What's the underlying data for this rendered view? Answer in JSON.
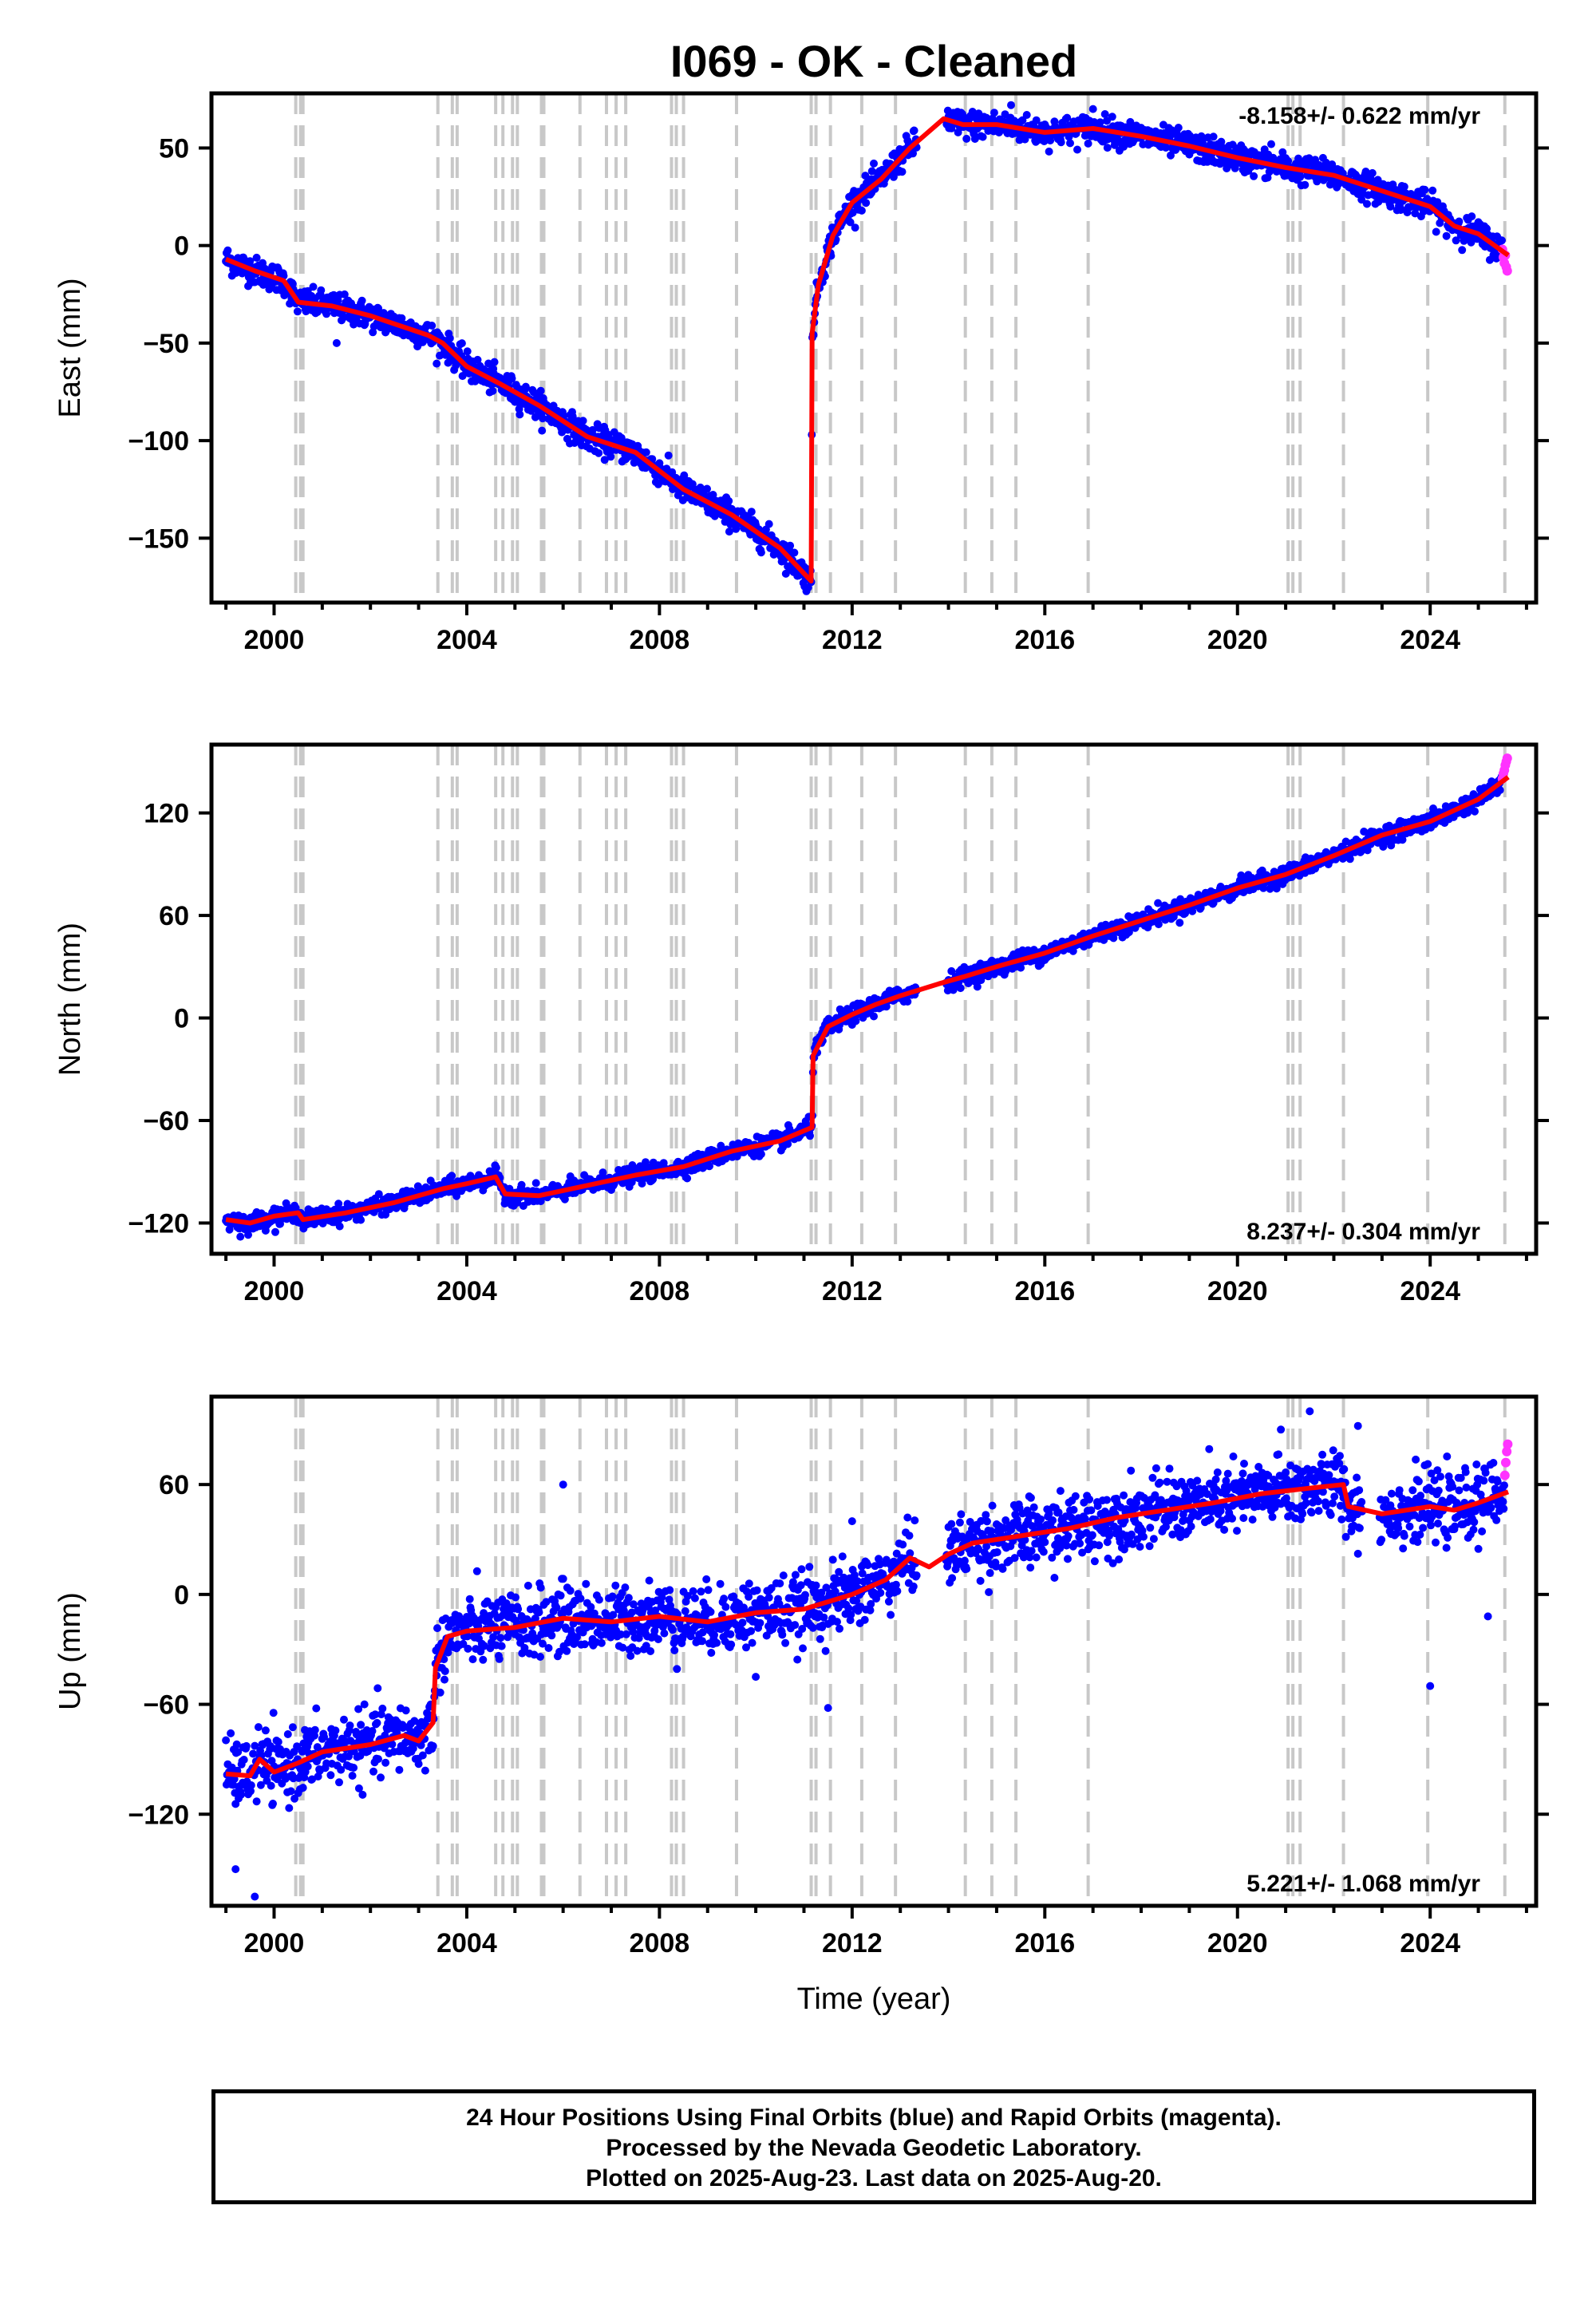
{
  "title": "I069  - OK - Cleaned",
  "xlabel": "Time (year)",
  "colors": {
    "final_orbits": "#0000ff",
    "rapid_orbits": "#ff33ff",
    "model": "#ff0000",
    "event_lines": "#c8c8c8",
    "frame": "#000000"
  },
  "footer": {
    "line1": "24 Hour Positions Using Final Orbits (blue) and Rapid Orbits (magenta).",
    "line2": "Processed by the Nevada Geodetic Laboratory.",
    "line3": "Plotted on 2025-Aug-23. Last data on 2025-Aug-20."
  },
  "chart_data": [
    {
      "type": "scatter",
      "ylabel": "East (mm)",
      "rate_label": "-8.158+/- 0.622 mm/yr",
      "rate_position": "top-right",
      "xlim": [
        1998.7,
        2026.2
      ],
      "ylim": [
        -183,
        78
      ],
      "x_ticks": [
        2000,
        2004,
        2008,
        2012,
        2016,
        2020,
        2024
      ],
      "y_ticks": [
        -150,
        -100,
        -50,
        0,
        50
      ],
      "y_tick_labels": [
        "−150",
        "−100",
        "−50",
        "0",
        "50"
      ],
      "noise_mm": 3.5,
      "model_x": [
        1999.0,
        1999.6,
        2000.2,
        2000.5,
        2001.2,
        2002.0,
        2003.2,
        2003.5,
        2004.0,
        2004.7,
        2005.5,
        2006.5,
        2007.5,
        2008.5,
        2009.5,
        2010.5,
        2011.15,
        2011.17,
        2011.3,
        2011.6,
        2012.0,
        2012.6,
        2013.2,
        2013.9,
        2014.3,
        2015.0,
        2016.0,
        2017.0,
        2018.0,
        2019.0,
        2020.0,
        2021.0,
        2022.0,
        2023.0,
        2024.0,
        2024.5,
        2025.0,
        2025.62
      ],
      "model_y": [
        -7,
        -13,
        -18,
        -29,
        -31,
        -36,
        -46,
        -50,
        -62,
        -71,
        -82,
        -98,
        -106,
        -125,
        -138,
        -155,
        -172,
        -45,
        -20,
        5,
        22,
        34,
        50,
        65,
        62,
        62,
        58,
        60,
        56,
        51,
        45,
        40,
        36,
        28,
        20,
        10,
        6,
        -5
      ],
      "rapid_x": [
        2025.5,
        2025.52,
        2025.54,
        2025.56,
        2025.58,
        2025.6
      ],
      "rapid_y": [
        -2,
        -6,
        -9,
        -5,
        -11,
        -13
      ],
      "outliers_x": [
        2001.3,
        2014.2,
        2015.3,
        2017.0,
        2020.7
      ],
      "outliers_y": [
        -50,
        58,
        72,
        70,
        52
      ]
    },
    {
      "type": "scatter",
      "ylabel": "North (mm)",
      "rate_label": "8.237+/- 0.304 mm/yr",
      "rate_position": "bottom-right",
      "xlim": [
        1998.7,
        2026.2
      ],
      "ylim": [
        -138,
        160
      ],
      "x_ticks": [
        2000,
        2004,
        2008,
        2012,
        2016,
        2020,
        2024
      ],
      "y_ticks": [
        -120,
        -60,
        0,
        60,
        120
      ],
      "y_tick_labels": [
        "−120",
        "−60",
        "0",
        "60",
        "120"
      ],
      "noise_mm": 2.5,
      "model_x": [
        1999.0,
        1999.5,
        2000.0,
        2000.5,
        2000.6,
        2001.5,
        2002.5,
        2003.5,
        2004.0,
        2004.6,
        2004.8,
        2005.5,
        2006.5,
        2007.5,
        2008.5,
        2009.5,
        2010.5,
        2011.17,
        2011.19,
        2011.5,
        2012.0,
        2012.5,
        2013.0,
        2013.8,
        2014.3,
        2015.0,
        2016.0,
        2017.0,
        2018.0,
        2019.0,
        2020.0,
        2021.0,
        2022.0,
        2023.0,
        2024.0,
        2025.0,
        2025.62
      ],
      "model_y": [
        -118,
        -120,
        -116,
        -114,
        -118,
        -114,
        -108,
        -100,
        -97,
        -93,
        -103,
        -104,
        -98,
        -92,
        -87,
        -78,
        -72,
        -64,
        -22,
        -5,
        2,
        8,
        13,
        20,
        24,
        30,
        38,
        48,
        57,
        66,
        76,
        84,
        95,
        107,
        115,
        128,
        141
      ],
      "rapid_x": [
        2025.5,
        2025.52,
        2025.54,
        2025.56,
        2025.58,
        2025.6
      ],
      "rapid_y": [
        140,
        143,
        145,
        148,
        150,
        152
      ],
      "outliers_x": [
        1999.3,
        2004.6
      ],
      "outliers_y": [
        -128,
        -88
      ]
    },
    {
      "type": "scatter",
      "ylabel": "Up (mm)",
      "rate_label": "5.221+/- 1.068 mm/yr",
      "rate_position": "bottom-right",
      "xlim": [
        1998.7,
        2026.2
      ],
      "ylim": [
        -170,
        108
      ],
      "x_ticks": [
        2000,
        2004,
        2008,
        2012,
        2016,
        2020,
        2024
      ],
      "y_ticks": [
        -120,
        -60,
        0,
        60
      ],
      "y_tick_labels": [
        "−120",
        "−60",
        "0",
        "60"
      ],
      "noise_mm": 9,
      "model_x": [
        1999.0,
        1999.5,
        1999.7,
        2000.0,
        2000.5,
        2001.0,
        2002.0,
        2002.7,
        2003.0,
        2003.3,
        2003.35,
        2003.6,
        2004.0,
        2005.0,
        2006.0,
        2007.0,
        2008.0,
        2009.0,
        2010.0,
        2011.0,
        2012.0,
        2012.7,
        2013.2,
        2013.6,
        2014.0,
        2014.5,
        2015.5,
        2016.5,
        2017.5,
        2018.5,
        2019.5,
        2020.5,
        2021.5,
        2022.2,
        2022.3,
        2023.0,
        2023.5,
        2024.0,
        2024.5,
        2025.0,
        2025.62
      ],
      "model_y": [
        -98,
        -99,
        -90,
        -97,
        -92,
        -86,
        -82,
        -77,
        -80,
        -70,
        -40,
        -23,
        -20,
        -18,
        -13,
        -15,
        -12,
        -15,
        -10,
        -8,
        0,
        8,
        20,
        15,
        22,
        28,
        32,
        36,
        42,
        46,
        50,
        55,
        58,
        60,
        48,
        44,
        46,
        48,
        46,
        50,
        56
      ],
      "rapid_x": [
        2025.55,
        2025.57,
        2025.59,
        2025.61
      ],
      "rapid_y": [
        65,
        72,
        78,
        82
      ],
      "outliers_x": [
        1999.2,
        1999.6,
        2006.0,
        2011.5,
        2020.9,
        2021.5,
        2022.5,
        2024.0,
        2025.2,
        2010.0,
        2012.0
      ],
      "outliers_y": [
        -150,
        -165,
        60,
        -62,
        90,
        100,
        92,
        -50,
        -12,
        -45,
        40
      ]
    }
  ],
  "event_lines_years": [
    2000.45,
    2000.55,
    2000.6,
    2003.4,
    2003.7,
    2003.8,
    2004.6,
    2004.75,
    2004.95,
    2005.05,
    2005.55,
    2005.6,
    2006.35,
    2006.9,
    2007.1,
    2007.3,
    2008.25,
    2008.35,
    2008.5,
    2009.6,
    2011.15,
    2011.25,
    2011.55,
    2012.2,
    2012.9,
    2014.35,
    2014.9,
    2015.4,
    2016.9,
    2021.05,
    2021.15,
    2021.3,
    2022.2,
    2023.95,
    2025.55
  ]
}
